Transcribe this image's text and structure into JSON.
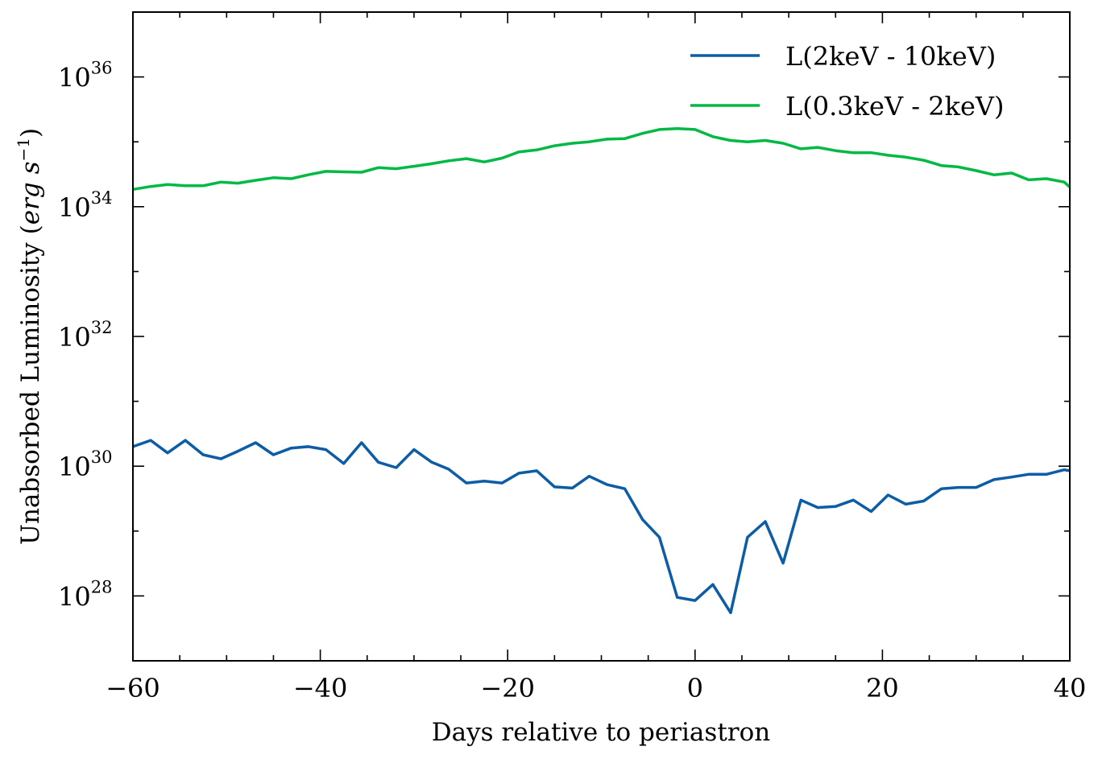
{
  "chart_data": {
    "type": "line",
    "title": "",
    "xlabel": "Days relative to periastron",
    "ylabel": {
      "main": "Unabsorbed Luminosity (",
      "unit_erg": "erg",
      "unit_s": "s",
      "unit_exp": "−1",
      "close": ")"
    },
    "xlim": [
      -60,
      40
    ],
    "ylim_log10": [
      27,
      37
    ],
    "y_scale": "log",
    "grid": false,
    "legend_position": "top-right",
    "x_ticks": [
      {
        "value": -60,
        "label": "−60"
      },
      {
        "value": -40,
        "label": "−40"
      },
      {
        "value": -20,
        "label": "−20"
      },
      {
        "value": 0,
        "label": "0"
      },
      {
        "value": 20,
        "label": "20"
      },
      {
        "value": 40,
        "label": "40"
      }
    ],
    "y_ticks": [
      {
        "exp": 28,
        "base": "10",
        "sup": "28"
      },
      {
        "exp": 30,
        "base": "10",
        "sup": "30"
      },
      {
        "exp": 32,
        "base": "10",
        "sup": "32"
      },
      {
        "exp": 34,
        "base": "10",
        "sup": "34"
      },
      {
        "exp": 36,
        "base": "10",
        "sup": "36"
      }
    ],
    "x": [
      -60,
      -58.1,
      -56.3,
      -54.4,
      -52.5,
      -50.6,
      -48.8,
      -46.9,
      -45,
      -43.1,
      -41.3,
      -39.4,
      -37.5,
      -35.6,
      -33.8,
      -31.9,
      -30,
      -28.1,
      -26.3,
      -24.4,
      -22.5,
      -20.6,
      -18.8,
      -16.9,
      -15,
      -13.1,
      -11.3,
      -9.4,
      -7.5,
      -5.6,
      -3.8,
      -1.9,
      0,
      1.9,
      3.8,
      5.6,
      7.5,
      9.4,
      11.3,
      13.1,
      15,
      16.9,
      18.8,
      20.6,
      22.5,
      24.4,
      26.3,
      28.1,
      30,
      31.9,
      33.8,
      35.6,
      37.5,
      39.4,
      40
    ],
    "series": [
      {
        "name": "L(2keV - 10keV)",
        "color": "#0C5DA5",
        "y": [
          2e+30,
          2.5e+30,
          1.6e+30,
          2.5e+30,
          1.5e+30,
          1.3e+30,
          1.7e+30,
          2.3e+30,
          1.5e+30,
          1.9e+30,
          2e+30,
          1.8e+30,
          1.1e+30,
          2.3e+30,
          1.15e+30,
          9.5e+29,
          1.8e+30,
          1.15e+30,
          9e+29,
          5.5e+29,
          5.9e+29,
          5.5e+29,
          7.8e+29,
          8.5e+29,
          4.8e+29,
          4.6e+29,
          7e+29,
          5.2e+29,
          4.5e+29,
          1.5e+29,
          8e+28,
          9.5e+27,
          8.5e+27,
          1.5e+28,
          5.5e+27,
          8e+28,
          1.4e+29,
          3.2e+28,
          3e+29,
          2.3e+29,
          2.4e+29,
          3e+29,
          2e+29,
          3.6e+29,
          2.6e+29,
          2.9e+29,
          4.5e+29,
          4.7e+29,
          4.7e+29,
          6.2e+29,
          6.8e+29,
          7.5e+29,
          7.5e+29,
          8.8e+29,
          8.5e+29
        ]
      },
      {
        "name": "L(0.3keV - 2keV)",
        "color": "#00B945",
        "y": [
          1.85e+34,
          2.05e+34,
          2.2e+34,
          2.1e+34,
          2.1e+34,
          2.4e+34,
          2.3e+34,
          2.55e+34,
          2.8e+34,
          2.7e+34,
          3.1e+34,
          3.5e+34,
          3.45e+34,
          3.4e+34,
          4e+34,
          3.85e+34,
          4.2e+34,
          4.6e+34,
          5.1e+34,
          5.5e+34,
          4.9e+34,
          5.6e+34,
          7e+34,
          7.5e+34,
          8.7e+34,
          9.5e+34,
          1e+35,
          1.1e+35,
          1.12e+35,
          1.35e+35,
          1.55e+35,
          1.6e+35,
          1.55e+35,
          1.2e+35,
          1.05e+35,
          1e+35,
          1.05e+35,
          9.5e+34,
          7.8e+34,
          8.2e+34,
          7.3e+34,
          6.8e+34,
          6.8e+34,
          6.2e+34,
          5.8e+34,
          5.2e+34,
          4.3e+34,
          4.1e+34,
          3.6e+34,
          3.1e+34,
          3.3e+34,
          2.6e+34,
          2.7e+34,
          2.4e+34,
          2e+34
        ]
      }
    ]
  }
}
